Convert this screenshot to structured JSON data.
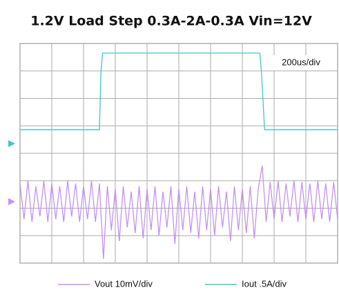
{
  "chart_data": {
    "type": "line",
    "title": "1.2V Load Step 0.3A-2A-0.3A Vin=12V",
    "annotation": "200us/div",
    "legend": "bottom",
    "grid": true,
    "xlim": [
      0,
      10
    ],
    "ylim": [
      0,
      8
    ],
    "xticks": [
      0,
      1,
      2,
      3,
      4,
      5,
      6,
      7,
      8,
      9,
      10
    ],
    "yticks": [
      0,
      1,
      2,
      3,
      4,
      5,
      6,
      7,
      8
    ],
    "series": [
      {
        "name": "Vout 10mV/div",
        "color": "#c58ff5",
        "x": [
          0,
          0.125,
          0.25,
          0.375,
          0.5,
          0.625,
          0.75,
          0.875,
          1,
          1.125,
          1.25,
          1.375,
          1.5,
          1.625,
          1.75,
          1.875,
          2,
          2.125,
          2.25,
          2.375,
          2.5,
          2.625,
          2.75,
          2.875,
          3,
          3.125,
          3.25,
          3.375,
          3.5,
          3.625,
          3.75,
          3.875,
          4,
          4.125,
          4.25,
          4.375,
          4.5,
          4.625,
          4.75,
          4.875,
          5,
          5.125,
          5.25,
          5.375,
          5.5,
          5.625,
          5.75,
          5.875,
          6,
          6.125,
          6.25,
          6.375,
          6.5,
          6.625,
          6.75,
          6.875,
          7,
          7.125,
          7.25,
          7.375,
          7.5,
          7.625,
          7.75,
          7.875,
          8,
          8.125,
          8.25,
          8.375,
          8.5,
          8.625,
          8.75,
          8.875,
          9,
          9.125,
          9.25,
          9.375,
          9.5,
          9.625,
          9.75,
          9.875,
          10
        ],
        "values": [
          2.9,
          1.6,
          3.0,
          1.5,
          2.8,
          1.7,
          3.0,
          1.5,
          2.9,
          1.6,
          2.8,
          1.5,
          3.0,
          1.7,
          2.9,
          1.5,
          2.8,
          1.6,
          3.0,
          1.5,
          2.9,
          0.15,
          2.8,
          1.2,
          2.7,
          0.8,
          2.8,
          1.3,
          2.6,
          1.1,
          2.8,
          0.9,
          2.7,
          1.2,
          2.8,
          1.0,
          2.6,
          1.3,
          2.8,
          0.7,
          2.7,
          1.2,
          2.8,
          1.1,
          2.6,
          0.9,
          2.8,
          1.2,
          2.7,
          1.0,
          2.8,
          1.3,
          2.6,
          0.8,
          2.8,
          1.2,
          2.7,
          1.1,
          2.8,
          0.9,
          2.7,
          3.55,
          1.5,
          2.95,
          1.6,
          3.0,
          1.5,
          2.9,
          1.7,
          3.0,
          1.5,
          2.95,
          1.6,
          2.9,
          1.5,
          3.0,
          1.6,
          2.9,
          1.5,
          2.95,
          1.6
        ]
      },
      {
        "name": "Iout .5A/div",
        "color": "#3ec6c6",
        "x": [
          0,
          2.5,
          2.55,
          2.6,
          7.55,
          7.6,
          7.7,
          10
        ],
        "values": [
          4.86,
          4.86,
          7.0,
          7.65,
          7.65,
          7.0,
          4.86,
          4.86
        ]
      }
    ]
  }
}
